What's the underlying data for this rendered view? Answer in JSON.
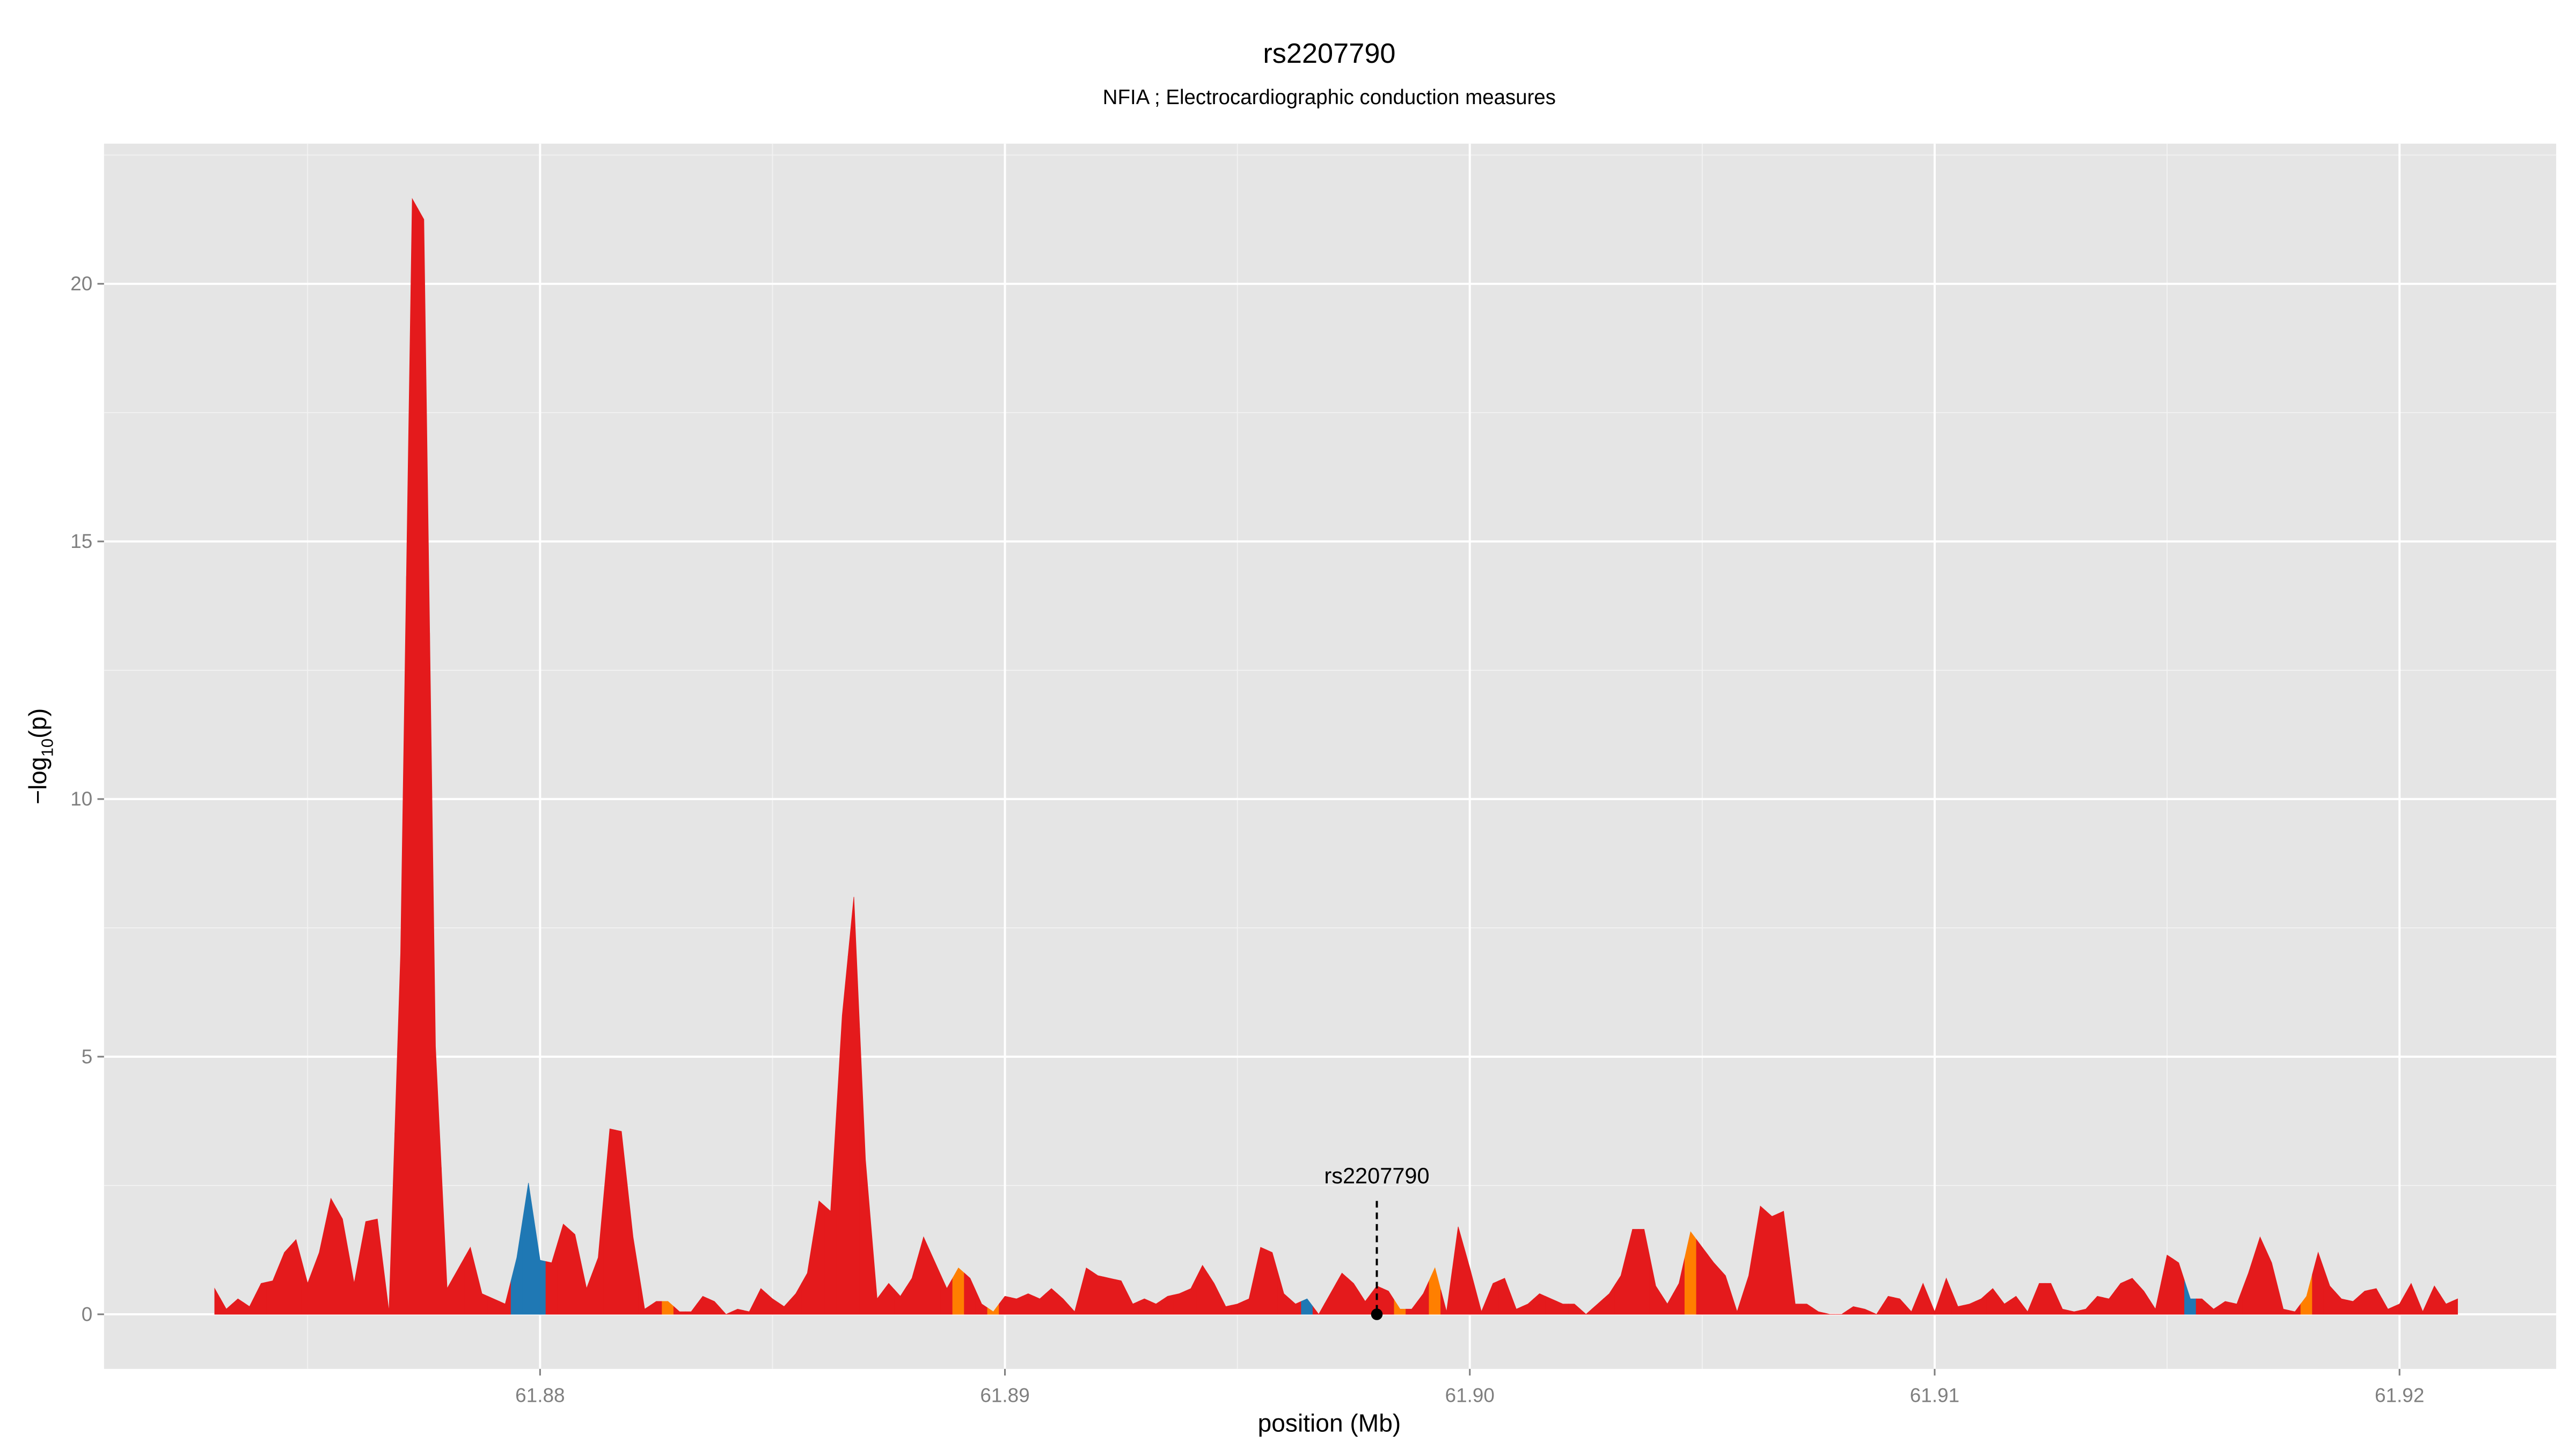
{
  "chart_data": {
    "type": "area",
    "title": "rs2207790",
    "subtitle": "NFIA ; Electrocardiographic conduction measures",
    "xlabel": "position (Mb)",
    "ylabel": [
      "−log",
      "10",
      "(p)"
    ],
    "xlim": [
      61.87062,
      61.92337
    ],
    "ylim": [
      -1.06,
      22.72
    ],
    "xticks": [
      61.88,
      61.89,
      {
        "value": 61.9,
        "label": "61.90"
      },
      61.91,
      61.92
    ],
    "yticks": [
      0,
      5,
      10,
      15,
      20
    ],
    "x_minor_ticks": [
      61.875,
      61.885,
      61.895,
      61.905,
      61.915
    ],
    "y_minor_ticks": [
      2.5,
      7.5,
      12.5,
      17.5,
      22.5
    ],
    "grid": true,
    "x": [
      61.873,
      61.87325,
      61.8735,
      61.87375,
      61.874,
      61.87425,
      61.8745,
      61.87475,
      61.875,
      61.87525,
      61.8755,
      61.87575,
      61.876,
      61.87625,
      61.8765,
      61.87675,
      61.877,
      61.87725,
      61.8775,
      61.87775,
      61.878,
      61.87825,
      61.8785,
      61.87875,
      61.879,
      61.87925,
      61.8795,
      61.87975,
      61.88,
      61.88025,
      61.8805,
      61.88075,
      61.881,
      61.88125,
      61.8815,
      61.88175,
      61.882,
      61.88225,
      61.8825,
      61.88275,
      61.883,
      61.88325,
      61.8835,
      61.88375,
      61.884,
      61.88425,
      61.8845,
      61.88475,
      61.885,
      61.88525,
      61.8855,
      61.88575,
      61.886,
      61.88625,
      61.8865,
      61.88675,
      61.887,
      61.88725,
      61.8875,
      61.88775,
      61.888,
      61.88825,
      61.8885,
      61.88875,
      61.889,
      61.88925,
      61.8895,
      61.88975,
      61.89,
      61.89025,
      61.8905,
      61.89075,
      61.891,
      61.89125,
      61.8915,
      61.89175,
      61.892,
      61.89225,
      61.8925,
      61.89275,
      61.893,
      61.89325,
      61.8935,
      61.89375,
      61.894,
      61.89425,
      61.8945,
      61.89475,
      61.895,
      61.89525,
      61.8955,
      61.89575,
      61.896,
      61.89625,
      61.8965,
      61.89675,
      61.897,
      61.89725,
      61.8975,
      61.89775,
      61.898,
      61.89825,
      61.8985,
      61.89875,
      61.899,
      61.89925,
      61.8995,
      61.89975,
      61.9,
      61.90025,
      61.9005,
      61.90075,
      61.901,
      61.90125,
      61.9015,
      61.90175,
      61.902,
      61.90225,
      61.9025,
      61.90275,
      61.903,
      61.90325,
      61.9035,
      61.90375,
      61.904,
      61.90425,
      61.9045,
      61.90475,
      61.905,
      61.90525,
      61.9055,
      61.90575,
      61.906,
      61.90625,
      61.9065,
      61.90675,
      61.907,
      61.90725,
      61.9075,
      61.90775,
      61.908,
      61.90825,
      61.9085,
      61.90875,
      61.909,
      61.90925,
      61.9095,
      61.90975,
      61.91,
      61.91025,
      61.9105,
      61.91075,
      61.911,
      61.91125,
      61.9115,
      61.91175,
      61.912,
      61.91225,
      61.9125,
      61.91275,
      61.913,
      61.91325,
      61.9135,
      61.91375,
      61.914,
      61.91425,
      61.9145,
      61.91475,
      61.915,
      61.91525,
      61.9155,
      61.91575,
      61.916,
      61.91625,
      61.9165,
      61.91675,
      61.917,
      61.91725,
      61.9175,
      61.91775,
      61.918,
      61.91825,
      61.9185,
      61.91875,
      61.919,
      61.91925,
      61.9195,
      61.91975,
      61.92,
      61.92025,
      61.9205,
      61.92075,
      61.921,
      61.92125
    ],
    "values": [
      0.5,
      0.1,
      0.3,
      0.15,
      0.6,
      0.65,
      1.2,
      1.45,
      0.6,
      1.2,
      2.25,
      1.85,
      0.6,
      1.8,
      1.85,
      0.05,
      7.0,
      21.65,
      21.25,
      5.2,
      0.5,
      0.9,
      1.3,
      0.4,
      0.3,
      0.2,
      1.1,
      2.55,
      1.05,
      1.0,
      1.75,
      1.55,
      0.5,
      1.1,
      3.6,
      3.55,
      1.5,
      0.1,
      0.25,
      0.25,
      0.05,
      0.05,
      0.35,
      0.25,
      0,
      0.1,
      0.05,
      0.5,
      0.3,
      0.15,
      0.4,
      0.8,
      2.2,
      2.0,
      5.8,
      8.1,
      3.0,
      0.3,
      0.6,
      0.35,
      0.7,
      1.5,
      1.0,
      0.5,
      0.9,
      0.7,
      0.2,
      0.05,
      0.35,
      0.3,
      0.4,
      0.3,
      0.5,
      0.3,
      0.05,
      0.9,
      0.75,
      0.7,
      0.65,
      0.2,
      0.3,
      0.2,
      0.35,
      0.4,
      0.5,
      0.95,
      0.6,
      0.15,
      0.2,
      0.3,
      1.3,
      1.2,
      0.4,
      0.2,
      0.3,
      0,
      0.4,
      0.8,
      0.6,
      0.25,
      0.55,
      0.45,
      0.1,
      0.1,
      0.4,
      0.9,
      0.05,
      1.7,
      0.9,
      0.05,
      0.6,
      0.7,
      0.1,
      0.2,
      0.4,
      0.3,
      0.2,
      0.2,
      0,
      0.2,
      0.4,
      0.75,
      1.65,
      1.65,
      0.55,
      0.2,
      0.6,
      1.6,
      1.3,
      1.0,
      0.75,
      0.05,
      0.75,
      2.1,
      1.9,
      2.0,
      0.2,
      0.2,
      0.05,
      0,
      0,
      0.15,
      0.1,
      0,
      0.35,
      0.3,
      0.05,
      0.6,
      0.05,
      0.7,
      0.15,
      0.2,
      0.3,
      0.5,
      0.2,
      0.35,
      0.05,
      0.6,
      0.6,
      0.1,
      0.05,
      0.1,
      0.35,
      0.3,
      0.6,
      0.7,
      0.45,
      0.1,
      1.15,
      1.0,
      0.3,
      0.3,
      0.1,
      0.25,
      0.2,
      0.8,
      1.5,
      1.0,
      0.1,
      0.05,
      0.35,
      1.2,
      0.55,
      0.3,
      0.25,
      0.45,
      0.5,
      0.1,
      0.2,
      0.6,
      0.05,
      0.55,
      0.2,
      0.3
    ],
    "colors": [
      "#e41a1c",
      "#e41a1c",
      "#e41a1c",
      "#e41a1c",
      "#e41a1c",
      "#e41a1c",
      "#e41a1c",
      "#e41a1c",
      "#e41a1c",
      "#e41a1c",
      "#e41a1c",
      "#e41a1c",
      "#e41a1c",
      "#e41a1c",
      "#e41a1c",
      "#e41a1c",
      "#e41a1c",
      "#e41a1c",
      "#e41a1c",
      "#e41a1c",
      "#e41a1c",
      "#e41a1c",
      "#e41a1c",
      "#e41a1c",
      "#e41a1c",
      "#e41a1c",
      "#1f78b4",
      "#1f78b4",
      "#1f78b4",
      "#e41a1c",
      "#e41a1c",
      "#e41a1c",
      "#e41a1c",
      "#e41a1c",
      "#e41a1c",
      "#e41a1c",
      "#e41a1c",
      "#e41a1c",
      "#e41a1c",
      "#ff7f00",
      "#e41a1c",
      "#e41a1c",
      "#e41a1c",
      "#e41a1c",
      "#e41a1c",
      "#e41a1c",
      "#e41a1c",
      "#e41a1c",
      "#e41a1c",
      "#e41a1c",
      "#e41a1c",
      "#e41a1c",
      "#e41a1c",
      "#e41a1c",
      "#e41a1c",
      "#e41a1c",
      "#e41a1c",
      "#e41a1c",
      "#e41a1c",
      "#e41a1c",
      "#e41a1c",
      "#e41a1c",
      "#e41a1c",
      "#e41a1c",
      "#ff7f00",
      "#e41a1c",
      "#e41a1c",
      "#ff7f00",
      "#e41a1c",
      "#e41a1c",
      "#e41a1c",
      "#e41a1c",
      "#e41a1c",
      "#e41a1c",
      "#e41a1c",
      "#e41a1c",
      "#e41a1c",
      "#e41a1c",
      "#e41a1c",
      "#e41a1c",
      "#e41a1c",
      "#e41a1c",
      "#e41a1c",
      "#e41a1c",
      "#e41a1c",
      "#e41a1c",
      "#e41a1c",
      "#e41a1c",
      "#e41a1c",
      "#e41a1c",
      "#e41a1c",
      "#e41a1c",
      "#e41a1c",
      "#e41a1c",
      "#1f78b4",
      "#e41a1c",
      "#e41a1c",
      "#e41a1c",
      "#e41a1c",
      "#e41a1c",
      "#e41a1c",
      "#e41a1c",
      "#ff7f00",
      "#e41a1c",
      "#e41a1c",
      "#ff7f00",
      "#e41a1c",
      "#e41a1c",
      "#e41a1c",
      "#e41a1c",
      "#e41a1c",
      "#e41a1c",
      "#e41a1c",
      "#e41a1c",
      "#e41a1c",
      "#e41a1c",
      "#e41a1c",
      "#e41a1c",
      "#e41a1c",
      "#e41a1c",
      "#e41a1c",
      "#e41a1c",
      "#e41a1c",
      "#e41a1c",
      "#e41a1c",
      "#e41a1c",
      "#e41a1c",
      "#ff7f00",
      "#e41a1c",
      "#e41a1c",
      "#e41a1c",
      "#e41a1c",
      "#e41a1c",
      "#e41a1c",
      "#e41a1c",
      "#e41a1c",
      "#e41a1c",
      "#e41a1c",
      "#e41a1c",
      "#e41a1c",
      "#e41a1c",
      "#e41a1c",
      "#e41a1c",
      "#e41a1c",
      "#e41a1c",
      "#e41a1c",
      "#e41a1c",
      "#e41a1c",
      "#e41a1c",
      "#e41a1c",
      "#e41a1c",
      "#e41a1c",
      "#e41a1c",
      "#e41a1c",
      "#e41a1c",
      "#e41a1c",
      "#e41a1c",
      "#e41a1c",
      "#e41a1c",
      "#e41a1c",
      "#e41a1c",
      "#e41a1c",
      "#e41a1c",
      "#e41a1c",
      "#e41a1c",
      "#e41a1c",
      "#e41a1c",
      "#e41a1c",
      "#e41a1c",
      "#e41a1c",
      "#1f78b4",
      "#e41a1c",
      "#e41a1c",
      "#e41a1c",
      "#e41a1c",
      "#e41a1c",
      "#e41a1c",
      "#e41a1c",
      "#e41a1c",
      "#e41a1c",
      "#ff7f00",
      "#e41a1c",
      "#e41a1c",
      "#e41a1c",
      "#e41a1c",
      "#e41a1c",
      "#e41a1c",
      "#e41a1c",
      "#e41a1c",
      "#e41a1c",
      "#e41a1c",
      "#e41a1c",
      "#e41a1c",
      "#e41a1c"
    ],
    "annotation": {
      "label": "rs2207790",
      "x": 61.898,
      "label_y": 2.7,
      "line_top": 2.2,
      "point_y": 0
    }
  }
}
